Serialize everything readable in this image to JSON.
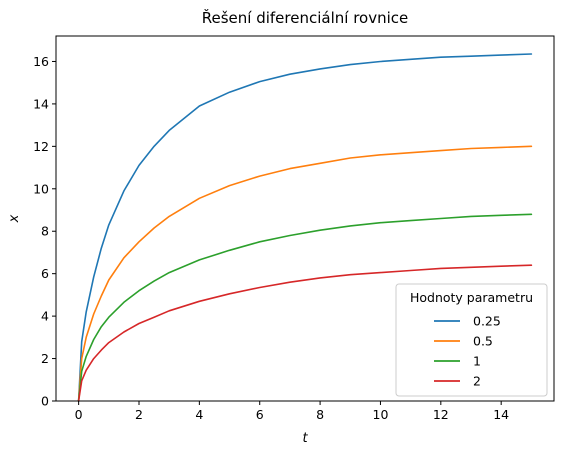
{
  "chart_data": {
    "type": "line",
    "title": "Řešení diferenciální rovnice",
    "xlabel": "t",
    "ylabel": "x",
    "xlim": [
      -0.75,
      15.75
    ],
    "ylim": [
      0,
      17.2
    ],
    "xticks": [
      0,
      2,
      4,
      6,
      8,
      10,
      12,
      14
    ],
    "yticks": [
      0,
      2,
      4,
      6,
      8,
      10,
      12,
      14,
      16
    ],
    "grid": false,
    "legend": {
      "title": "Hodnoty parametru",
      "placement": "lower-right"
    },
    "series": [
      {
        "name": "0.25",
        "color": "#1f77b4",
        "x": [
          0,
          0.1,
          0.25,
          0.5,
          0.75,
          1,
          1.5,
          2,
          2.5,
          3,
          4,
          5,
          6,
          7,
          8,
          9,
          10,
          11,
          12,
          13,
          14,
          15
        ],
        "y": [
          0,
          2.8,
          4.2,
          5.85,
          7.2,
          8.3,
          9.9,
          11.1,
          12.0,
          12.75,
          13.9,
          14.55,
          15.05,
          15.4,
          15.65,
          15.85,
          16.0,
          16.1,
          16.2,
          16.25,
          16.3,
          16.35
        ]
      },
      {
        "name": "0.5",
        "color": "#ff7f0e",
        "x": [
          0,
          0.1,
          0.25,
          0.5,
          0.75,
          1,
          1.5,
          2,
          2.5,
          3,
          4,
          5,
          6,
          7,
          8,
          9,
          10,
          11,
          12,
          13,
          14,
          15
        ],
        "y": [
          0,
          2.0,
          3.0,
          4.1,
          4.95,
          5.7,
          6.75,
          7.5,
          8.15,
          8.7,
          9.55,
          10.15,
          10.6,
          10.95,
          11.2,
          11.45,
          11.6,
          11.7,
          11.8,
          11.9,
          11.95,
          12.0
        ]
      },
      {
        "name": "1",
        "color": "#2ca02c",
        "x": [
          0,
          0.1,
          0.25,
          0.5,
          0.75,
          1,
          1.5,
          2,
          2.5,
          3,
          4,
          5,
          6,
          7,
          8,
          9,
          10,
          11,
          12,
          13,
          14,
          15
        ],
        "y": [
          0,
          1.4,
          2.1,
          2.9,
          3.5,
          3.95,
          4.65,
          5.2,
          5.65,
          6.05,
          6.65,
          7.1,
          7.5,
          7.8,
          8.05,
          8.25,
          8.4,
          8.5,
          8.6,
          8.7,
          8.75,
          8.8
        ]
      },
      {
        "name": "2",
        "color": "#d62728",
        "x": [
          0,
          0.1,
          0.25,
          0.5,
          0.75,
          1,
          1.5,
          2,
          2.5,
          3,
          4,
          5,
          6,
          7,
          8,
          9,
          10,
          11,
          12,
          13,
          14,
          15
        ],
        "y": [
          0,
          0.95,
          1.45,
          2.0,
          2.4,
          2.75,
          3.25,
          3.65,
          3.95,
          4.25,
          4.7,
          5.05,
          5.35,
          5.6,
          5.8,
          5.95,
          6.05,
          6.15,
          6.25,
          6.3,
          6.35,
          6.4
        ]
      }
    ]
  }
}
